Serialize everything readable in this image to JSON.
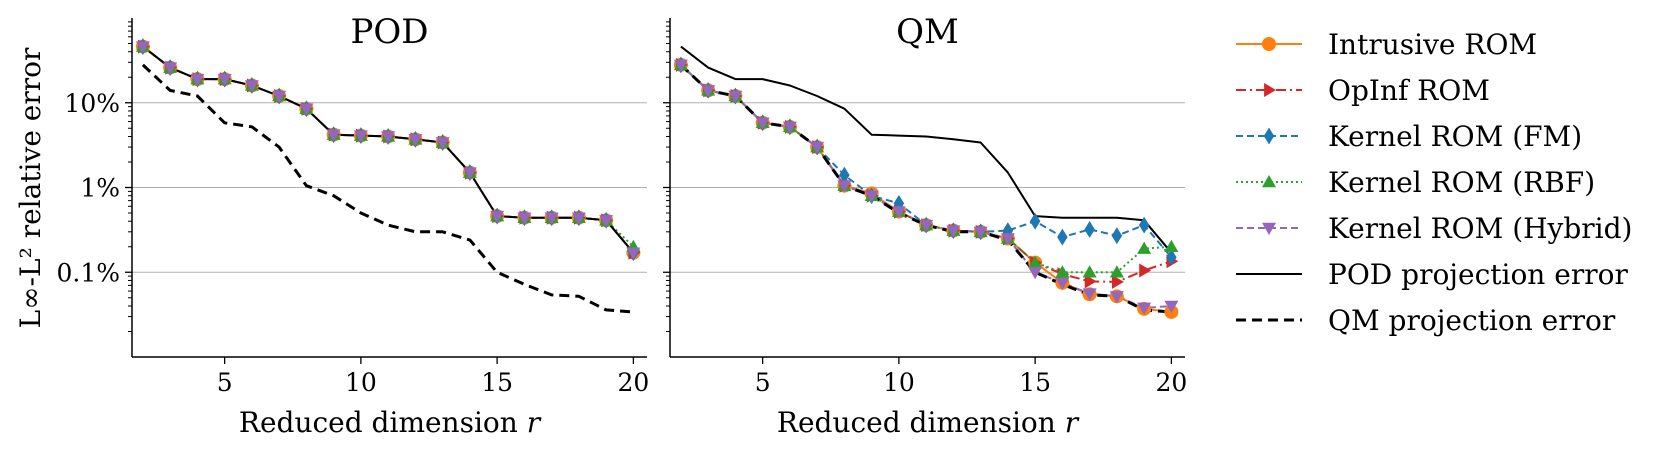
{
  "chart_data": [
    {
      "type": "line",
      "title": "POD",
      "xlabel": "Reduced dimension",
      "xlabel_var": "r",
      "ylabel": "L∞-L² relative error",
      "yscale": "log",
      "xlim": [
        1.6,
        20.5
      ],
      "ylim": [
        0.01,
        100
      ],
      "xticks": [
        5,
        10,
        15,
        20
      ],
      "yticks": [
        {
          "value": 0.1,
          "label": "0.1%"
        },
        {
          "value": 1,
          "label": "1%"
        },
        {
          "value": 10,
          "label": "10%"
        }
      ],
      "x": [
        2,
        3,
        4,
        5,
        6,
        7,
        8,
        9,
        10,
        11,
        12,
        13,
        14,
        15,
        16,
        17,
        18,
        19,
        20
      ],
      "series": [
        {
          "name": "Intrusive ROM",
          "values": [
            46,
            26,
            19,
            19,
            16,
            12,
            8.5,
            4.2,
            4.1,
            4.0,
            3.7,
            3.4,
            1.5,
            0.46,
            0.44,
            0.44,
            0.44,
            0.41,
            0.17
          ]
        },
        {
          "name": "OpInf ROM",
          "values": [
            46,
            26,
            19,
            19,
            16,
            12,
            8.5,
            4.2,
            4.1,
            4.0,
            3.7,
            3.4,
            1.5,
            0.46,
            0.44,
            0.44,
            0.44,
            0.41,
            0.17
          ]
        },
        {
          "name": "Kernel ROM (FM)",
          "values": [
            46,
            26,
            19,
            19,
            16,
            12,
            8.5,
            4.2,
            4.1,
            4.0,
            3.7,
            3.4,
            1.5,
            0.46,
            0.44,
            0.44,
            0.44,
            0.41,
            0.17
          ]
        },
        {
          "name": "Kernel ROM (RBF)",
          "values": [
            46,
            26,
            19,
            19,
            16,
            12,
            8.5,
            4.2,
            4.1,
            4.0,
            3.7,
            3.4,
            1.5,
            0.46,
            0.44,
            0.44,
            0.44,
            0.41,
            0.2
          ]
        },
        {
          "name": "Kernel ROM (Hybrid)",
          "values": [
            46,
            26,
            19,
            19,
            16,
            12,
            8.5,
            4.2,
            4.1,
            4.0,
            3.7,
            3.4,
            1.5,
            0.46,
            0.44,
            0.44,
            0.44,
            0.41,
            0.17
          ]
        },
        {
          "name": "POD projection error",
          "values": [
            46,
            26,
            19,
            19,
            16,
            12,
            8.5,
            4.2,
            4.1,
            4.0,
            3.7,
            3.4,
            1.5,
            0.46,
            0.44,
            0.44,
            0.44,
            0.41,
            0.17
          ]
        },
        {
          "name": "QM projection error",
          "values": [
            28,
            14,
            12,
            5.8,
            5.2,
            3.0,
            1.05,
            0.8,
            0.5,
            0.36,
            0.3,
            0.3,
            0.24,
            0.1,
            0.072,
            0.054,
            0.052,
            0.036,
            0.034
          ]
        }
      ]
    },
    {
      "type": "line",
      "title": "QM",
      "xlabel": "Reduced dimension",
      "xlabel_var": "r",
      "yscale": "log",
      "xlim": [
        1.6,
        20.5
      ],
      "ylim": [
        0.01,
        100
      ],
      "xticks": [
        5,
        10,
        15,
        20
      ],
      "yticks": [
        {
          "value": 0.1,
          "label": "0.1%"
        },
        {
          "value": 1,
          "label": "1%"
        },
        {
          "value": 10,
          "label": "10%"
        }
      ],
      "x": [
        2,
        3,
        4,
        5,
        6,
        7,
        8,
        9,
        10,
        11,
        12,
        13,
        14,
        15,
        16,
        17,
        18,
        19,
        20
      ],
      "series": [
        {
          "name": "Intrusive ROM",
          "values": [
            28,
            14,
            12,
            5.8,
            5.2,
            3.0,
            1.05,
            0.85,
            0.52,
            0.36,
            0.31,
            0.3,
            0.25,
            0.13,
            0.075,
            0.055,
            0.052,
            0.037,
            0.034
          ]
        },
        {
          "name": "OpInf ROM",
          "values": [
            28,
            14,
            12,
            5.8,
            5.2,
            3.0,
            1.05,
            0.8,
            0.52,
            0.36,
            0.31,
            0.3,
            0.25,
            0.13,
            0.095,
            0.078,
            0.077,
            0.105,
            0.135
          ]
        },
        {
          "name": "Kernel ROM (FM)",
          "values": [
            28,
            14,
            12,
            5.8,
            5.2,
            3.0,
            1.4,
            0.8,
            0.65,
            0.36,
            0.31,
            0.3,
            0.31,
            0.4,
            0.26,
            0.32,
            0.27,
            0.36,
            0.15
          ]
        },
        {
          "name": "Kernel ROM (RBF)",
          "values": [
            28,
            14,
            12,
            5.8,
            5.2,
            3.0,
            1.05,
            0.8,
            0.52,
            0.36,
            0.31,
            0.3,
            0.25,
            0.13,
            0.1,
            0.1,
            0.1,
            0.19,
            0.2
          ]
        },
        {
          "name": "Kernel ROM (Hybrid)",
          "values": [
            28,
            14,
            12,
            5.8,
            5.2,
            3.0,
            1.05,
            0.8,
            0.52,
            0.36,
            0.31,
            0.3,
            0.25,
            0.1,
            0.075,
            0.056,
            0.052,
            0.038,
            0.04
          ]
        },
        {
          "name": "POD projection error",
          "values": [
            46,
            26,
            19,
            19,
            16,
            12,
            8.5,
            4.2,
            4.1,
            4.0,
            3.7,
            3.4,
            1.5,
            0.46,
            0.44,
            0.44,
            0.44,
            0.41,
            0.17
          ]
        },
        {
          "name": "QM projection error",
          "values": [
            28,
            14,
            12,
            5.8,
            5.2,
            3.0,
            1.05,
            0.8,
            0.5,
            0.36,
            0.3,
            0.3,
            0.24,
            0.1,
            0.072,
            0.054,
            0.052,
            0.036,
            0.034
          ]
        }
      ]
    }
  ],
  "legend": {
    "placement": "right",
    "entries": [
      {
        "label": "Intrusive ROM",
        "color": "#ff7f0e",
        "dash": "solid",
        "marker": "circle"
      },
      {
        "label": "OpInf ROM",
        "color": "#d62728",
        "dash": "dashdot",
        "marker": "triangle-right"
      },
      {
        "label": "Kernel ROM (FM)",
        "color": "#1f77b4",
        "dash": "dashed",
        "marker": "diamond"
      },
      {
        "label": "Kernel ROM (RBF)",
        "color": "#2ca02c",
        "dash": "dotted",
        "marker": "triangle-up"
      },
      {
        "label": "Kernel ROM (Hybrid)",
        "color": "#9467bd",
        "dash": "dashed",
        "marker": "triangle-down"
      },
      {
        "label": "POD projection error",
        "color": "#000000",
        "dash": "solid",
        "marker": "none"
      },
      {
        "label": "QM projection error",
        "color": "#000000",
        "dash": "thick-dashed",
        "marker": "none"
      }
    ]
  },
  "colors": {
    "grid": "#b0b0b0",
    "axis": "#000000"
  }
}
